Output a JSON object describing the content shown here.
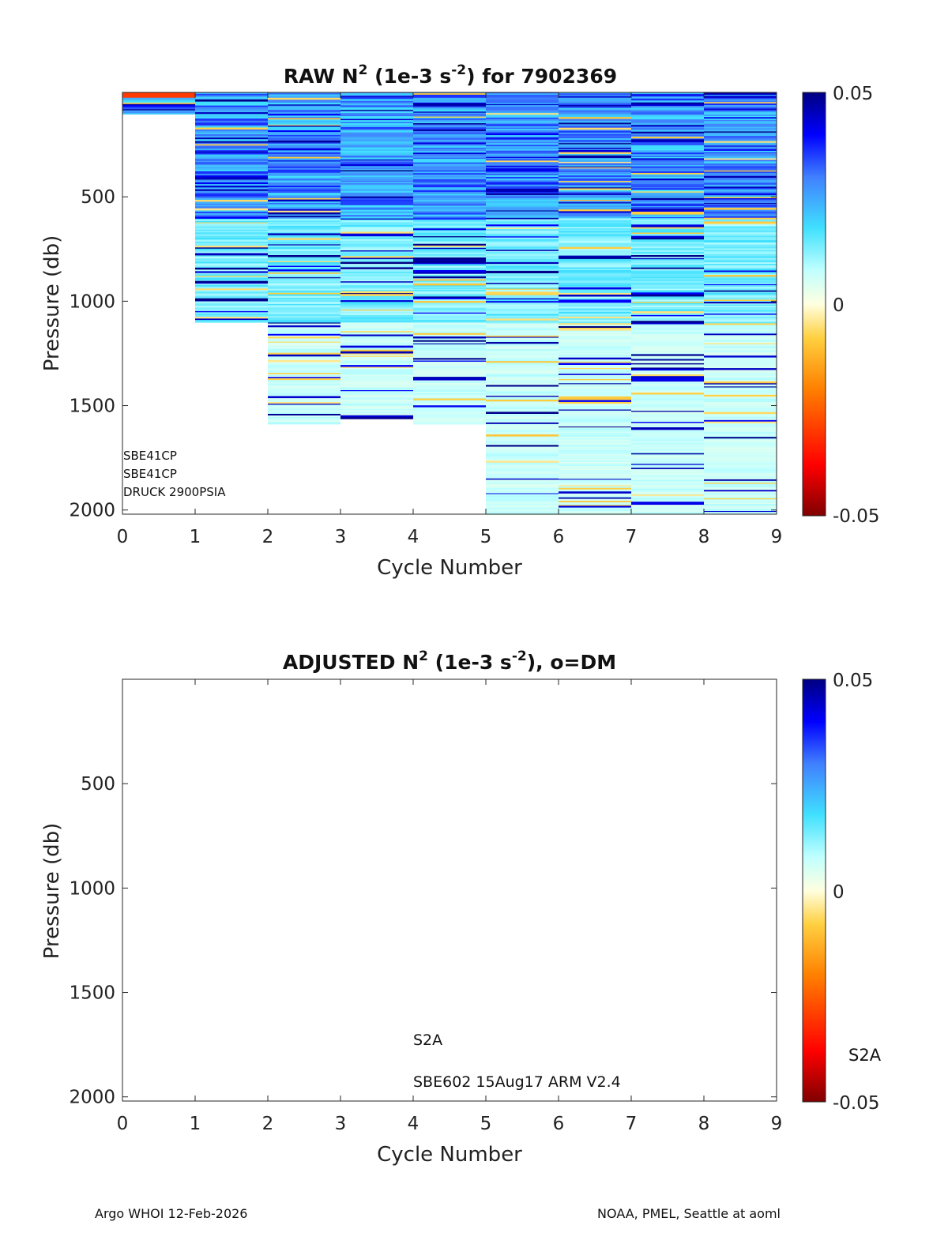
{
  "chart_data": [
    {
      "type": "heatmap",
      "title_parts": {
        "a": "RAW N",
        "b": "2",
        "c": " (1e-3 s",
        "d": "-2",
        "e": ") for 7902369"
      },
      "xlabel": "Cycle Number",
      "ylabel": "Pressure (db)",
      "xlim": [
        0,
        9
      ],
      "ylim": [
        2000,
        0
      ],
      "xticks": [
        "0",
        "1",
        "2",
        "3",
        "4",
        "5",
        "6",
        "7",
        "8",
        "9"
      ],
      "yticks": [
        "500",
        "1000",
        "1500",
        "2000"
      ],
      "colorbar": {
        "min": "-0.05",
        "mid": "0",
        "max": "0.05"
      },
      "annotations": [
        "SBE41CP",
        "SBE41CP",
        "DRUCK 2900PSIA"
      ],
      "profiles": [
        {
          "cycle": 1,
          "max_pressure": 100
        },
        {
          "cycle": 2,
          "max_pressure": 1100
        },
        {
          "cycle": 3,
          "max_pressure": 1580
        },
        {
          "cycle": 4,
          "max_pressure": 1560
        },
        {
          "cycle": 5,
          "max_pressure": 1580
        },
        {
          "cycle": 6,
          "max_pressure": 2020
        },
        {
          "cycle": 7,
          "max_pressure": 2020
        },
        {
          "cycle": 8,
          "max_pressure": 2020
        },
        {
          "cycle": 9,
          "max_pressure": 2010
        }
      ]
    },
    {
      "type": "heatmap",
      "title_parts": {
        "a": "ADJUSTED N",
        "b": "2",
        "c": " (1e-3 s",
        "d": "-2",
        "e": "), o=DM"
      },
      "xlabel": "Cycle Number",
      "ylabel": "Pressure (db)",
      "xlim": [
        0,
        9
      ],
      "ylim": [
        2000,
        0
      ],
      "xticks": [
        "0",
        "1",
        "2",
        "3",
        "4",
        "5",
        "6",
        "7",
        "8",
        "9"
      ],
      "yticks": [
        "500",
        "1000",
        "1500",
        "2000"
      ],
      "colorbar": {
        "min": "-0.05",
        "mid": "0",
        "max": "0.05",
        "label": "S2A"
      },
      "annotations": [
        "S2A",
        "SBE602 15Aug17 ARM V2.4"
      ],
      "profiles": []
    }
  ],
  "footer": {
    "left": "Argo WHOI 12-Feb-2026",
    "right": "NOAA, PMEL, Seattle at aoml"
  }
}
